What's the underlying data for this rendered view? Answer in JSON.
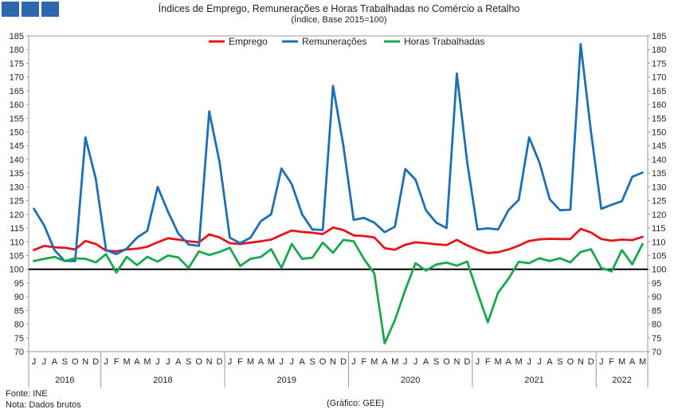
{
  "chart_data": {
    "type": "line",
    "title": "Índices de Emprego, Remunerações e Horas Trabalhadas no Comércio a Retalho",
    "subtitle": "(Índice, Base 2015=100)",
    "ylim": [
      70,
      185
    ],
    "ytick_step": 5,
    "reference_line": 100,
    "legend_position": "top-center",
    "x_month_labels": [
      "J",
      "J",
      "A",
      "S",
      "O",
      "N",
      "D",
      "J",
      "F",
      "M",
      "A",
      "M",
      "J",
      "J",
      "A",
      "S",
      "O",
      "N",
      "D",
      "J",
      "F",
      "M",
      "A",
      "M",
      "J",
      "J",
      "A",
      "S",
      "O",
      "N",
      "D",
      "J",
      "F",
      "M",
      "A",
      "M",
      "J",
      "J",
      "A",
      "S",
      "O",
      "N",
      "D",
      "J",
      "F",
      "M",
      "A",
      "M",
      "J",
      "J",
      "A",
      "S",
      "O",
      "N",
      "D",
      "J",
      "F",
      "M",
      "A",
      "M"
    ],
    "year_groups": [
      {
        "label": "2016",
        "count": 7
      },
      {
        "label": "2018",
        "count": 12
      },
      {
        "label": "2019",
        "count": 12
      },
      {
        "label": "2020",
        "count": 12
      },
      {
        "label": "2021",
        "count": 12
      },
      {
        "label": "2022",
        "count": 5
      }
    ],
    "series": [
      {
        "name": "Emprego",
        "color": "#e8141c",
        "values": [
          107,
          108.5,
          108,
          107.8,
          107.2,
          110.3,
          109.2,
          106.8,
          106.5,
          107.2,
          107.5,
          108.2,
          109.8,
          111.3,
          110.8,
          110.2,
          109.8,
          112.7,
          111.6,
          109.5,
          109.2,
          109.7,
          110.2,
          110.8,
          112.5,
          114.1,
          113.6,
          113.3,
          112.8,
          115.2,
          114.3,
          112.3,
          112.1,
          111.6,
          107.7,
          107.1,
          108.9,
          109.8,
          109.5,
          109.1,
          108.8,
          110.7,
          108.7,
          107.1,
          105.9,
          106.2,
          107.2,
          108.6,
          110.3,
          110.9,
          111.1,
          111,
          111,
          114.7,
          113.4,
          111,
          110.4,
          110.8,
          110.6,
          111.8
        ]
      },
      {
        "name": "Remunerações",
        "color": "#1f6fb5",
        "values": [
          122,
          116,
          107,
          103,
          103,
          148,
          133,
          107,
          105.5,
          107.5,
          111.5,
          114,
          130,
          121,
          113,
          109,
          108.5,
          157.5,
          139,
          111.5,
          109.5,
          111.5,
          117.5,
          120,
          136.7,
          131,
          120,
          114.5,
          114.3,
          166.8,
          145,
          118,
          118.7,
          117,
          113.5,
          115.5,
          136.5,
          132.6,
          121.5,
          117,
          115,
          171.3,
          139,
          114.5,
          114.9,
          114.5,
          121.5,
          125.3,
          148,
          139,
          125.5,
          121.5,
          121.7,
          182,
          150,
          122,
          123.5,
          124.8,
          133.7,
          135.2
        ]
      },
      {
        "name": "Horas Trabalhadas",
        "color": "#19a84f",
        "values": [
          103,
          103.8,
          104.5,
          103,
          104,
          103.8,
          102.5,
          105.5,
          98.8,
          104.5,
          101.5,
          104.5,
          102.8,
          105,
          104.3,
          100.5,
          106.5,
          105.2,
          106.3,
          107.8,
          101.2,
          103.8,
          104.5,
          107.3,
          100.5,
          109.2,
          103.8,
          104.2,
          109.7,
          106,
          110.7,
          110.2,
          103.7,
          98.5,
          73,
          81.5,
          92.5,
          102.2,
          99.5,
          101.7,
          102.4,
          101.3,
          102.8,
          91.5,
          80.7,
          91.5,
          96.5,
          102.7,
          102.2,
          104,
          103,
          104,
          102.5,
          106.3,
          107.3,
          100.5,
          99.2,
          107,
          101.8,
          109.2
        ]
      }
    ]
  },
  "footer": {
    "source": "Fonte: INE",
    "note": "Nota: Dados brutos",
    "credit": "(Gráfico: GEE)"
  }
}
